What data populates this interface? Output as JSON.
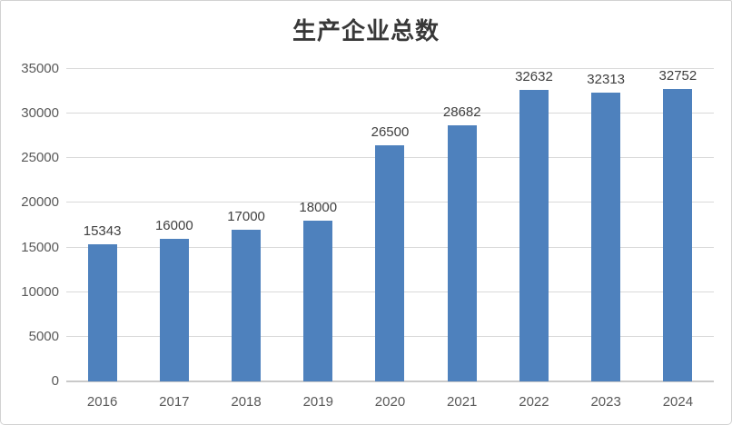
{
  "chart_data": {
    "type": "bar",
    "title": "生产企业总数",
    "categories": [
      "2016",
      "2017",
      "2018",
      "2019",
      "2020",
      "2021",
      "2022",
      "2023",
      "2024"
    ],
    "values": [
      15343,
      16000,
      17000,
      18000,
      26500,
      28682,
      32632,
      32313,
      32752
    ],
    "xlabel": "",
    "ylabel": "",
    "ylim": [
      0,
      35000
    ],
    "ytick_interval": 5000,
    "yticks": [
      "0",
      "5000",
      "10000",
      "15000",
      "20000",
      "25000",
      "30000",
      "35000"
    ],
    "grid": "horizontal",
    "legend": "none",
    "value_labels_shown": true,
    "colors": {
      "bar": "#4e81bd",
      "gridline": "#d9d9d9",
      "axis_line": "#c9c9c9",
      "value_label": "#3f3f3f",
      "tick_label": "#595959",
      "title": "#383838",
      "border": "#d2d2d2",
      "background": "#ffffff"
    }
  }
}
